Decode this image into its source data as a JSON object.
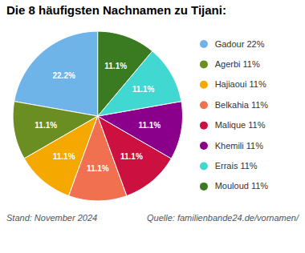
{
  "chart_data": {
    "type": "pie",
    "title": "Die 8 häufigsten Nachnamen zu Tijani:",
    "categories": [
      "Gadour 22%",
      "Agerbi 11%",
      "Hajiaoui 11%",
      "Belkahia 11%",
      "Malique 11%",
      "Khemili 11%",
      "Errais 11%",
      "Mouloud 11%"
    ],
    "values": [
      22.2,
      11.1,
      11.1,
      11.1,
      11.1,
      11.1,
      11.1,
      11.1
    ],
    "value_labels": [
      "22.2%",
      "11.1%",
      "11.1%",
      "11.1%",
      "11.1%",
      "11.1%",
      "11.1%",
      "11.1%"
    ],
    "data_labels": true,
    "colors": [
      "#6EB4E8",
      "#6B8E23",
      "#F5A800",
      "#F07050",
      "#CC1040",
      "#8B008B",
      "#40D8D0",
      "#3A7A20"
    ],
    "legend": "right",
    "annotations": [
      "Stand: November 2024",
      "Quelle: familienbande24.de/vornamen/"
    ]
  }
}
